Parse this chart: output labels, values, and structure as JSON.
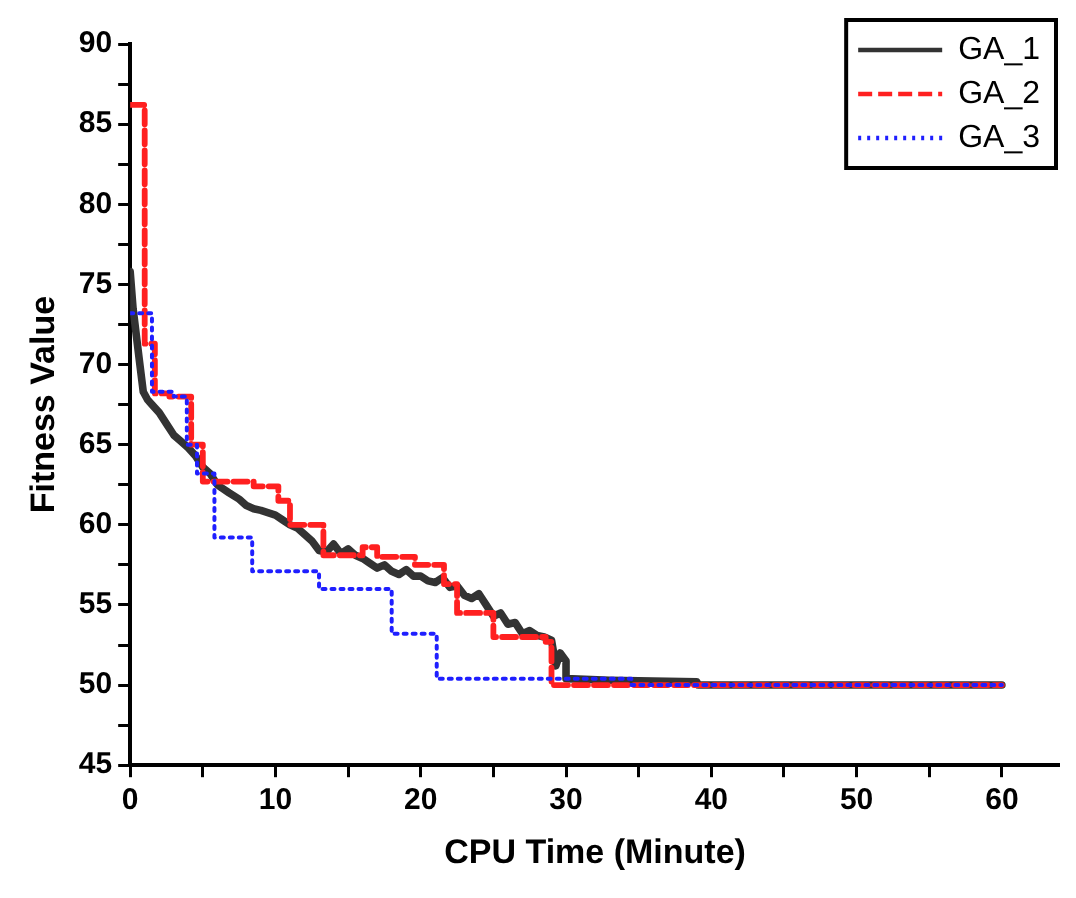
{
  "chart_data": {
    "type": "line",
    "xlabel": "CPU Time (Minute)",
    "ylabel": "Fitness Value",
    "xlim": [
      0,
      64
    ],
    "ylim": [
      45,
      90
    ],
    "xticks": [
      0,
      {
        "value": 5,
        "label": null
      },
      10,
      {
        "value": 15,
        "label": null
      },
      20,
      {
        "value": 25,
        "label": null
      },
      30,
      {
        "value": 35,
        "label": null
      },
      40,
      {
        "value": 45,
        "label": null
      },
      50,
      {
        "value": 55,
        "label": null
      },
      60
    ],
    "yticks": [
      45,
      {
        "value": 47.5,
        "label": null
      },
      50,
      {
        "value": 52.5,
        "label": null
      },
      55,
      {
        "value": 57.5,
        "label": null
      },
      60,
      {
        "value": 62.5,
        "label": null
      },
      65,
      {
        "value": 67.5,
        "label": null
      },
      70,
      {
        "value": 72.5,
        "label": null
      },
      75,
      {
        "value": 77.5,
        "label": null
      },
      80,
      {
        "value": 82.5,
        "label": null
      },
      85,
      {
        "value": 87.5,
        "label": null
      },
      90
    ],
    "grid": false,
    "legend": "top right",
    "marker": "none",
    "series": [
      {
        "name": "GA_1",
        "color": "#333333",
        "line_style": "solid",
        "x": [
          0,
          0.2,
          0.4,
          0.6,
          0.9,
          1.2,
          1.5,
          2,
          2.5,
          3,
          3.5,
          4,
          4.5,
          5,
          5.5,
          6,
          6.3,
          6.8,
          7.5,
          8,
          8.5,
          9,
          10,
          10.5,
          11,
          11.5,
          12,
          12.5,
          13,
          13.5,
          14,
          14.5,
          15,
          15.5,
          16,
          16.5,
          17,
          17.5,
          18,
          18.5,
          19,
          19.5,
          20,
          20.5,
          21,
          21.5,
          22,
          22.5,
          23,
          23.5,
          24,
          24.5,
          25,
          25.5,
          26,
          26.5,
          27,
          27.5,
          28,
          28.5,
          29,
          29.3,
          29.6,
          30,
          30,
          33,
          39,
          39.1,
          60
        ],
        "values": [
          75.8,
          73.5,
          72,
          70.5,
          68.3,
          67.8,
          67.5,
          67,
          66.3,
          65.6,
          65.2,
          64.8,
          64.3,
          63.6,
          63.2,
          62.5,
          62.3,
          62,
          61.6,
          61.2,
          61,
          60.9,
          60.6,
          60.3,
          60,
          59.8,
          59.4,
          59,
          58.4,
          58.3,
          58.8,
          58.2,
          58.5,
          58.1,
          57.9,
          57.6,
          57.3,
          57.5,
          57.1,
          56.9,
          57.2,
          56.8,
          56.8,
          56.5,
          56.4,
          56.7,
          56.1,
          56.2,
          55.6,
          55.4,
          55.7,
          55,
          54.3,
          54.5,
          53.8,
          53.9,
          53.2,
          53.4,
          53.1,
          53,
          52.8,
          51.2,
          52,
          51.5,
          50.4,
          50.3,
          50.2,
          50,
          50
        ]
      },
      {
        "name": "GA_2",
        "color": "#ff2020",
        "line_style": "dashed",
        "x": [
          0,
          1,
          1,
          1.7,
          1.7,
          2.7,
          2.7,
          4.2,
          4.2,
          5,
          5,
          8.5,
          8.5,
          10.2,
          10.2,
          11,
          11,
          13.3,
          13.3,
          16,
          16,
          17,
          17,
          19.6,
          19.6,
          21.6,
          21.6,
          22.5,
          22.5,
          25,
          25,
          28.6,
          28.6,
          29,
          29,
          60
        ],
        "values": [
          86.2,
          86.2,
          71.3,
          71.3,
          68.2,
          68.2,
          68,
          68,
          65,
          65,
          62.7,
          62.7,
          62.4,
          62.4,
          61.5,
          61.5,
          60,
          60,
          58.1,
          58.1,
          58.6,
          58.6,
          58,
          58,
          57.5,
          57.5,
          56.3,
          56.3,
          54.5,
          54.5,
          53,
          53,
          52.7,
          52.7,
          50,
          50
        ]
      },
      {
        "name": "GA_3",
        "color": "#1f1fff",
        "line_style": "dotted",
        "x": [
          0,
          1.5,
          1.5,
          3,
          3,
          3.9,
          3.9,
          4.6,
          4.6,
          5.8,
          5.8,
          8.4,
          8.4,
          13,
          13,
          18,
          18,
          21.1,
          21.1,
          34.5,
          34.5,
          60
        ],
        "values": [
          73.2,
          73.2,
          68.3,
          68.3,
          68,
          68,
          65,
          65,
          63.2,
          63.2,
          59.2,
          59.2,
          57.1,
          57.1,
          56,
          56,
          53.2,
          53.2,
          50.4,
          50.4,
          50,
          50
        ]
      }
    ]
  }
}
